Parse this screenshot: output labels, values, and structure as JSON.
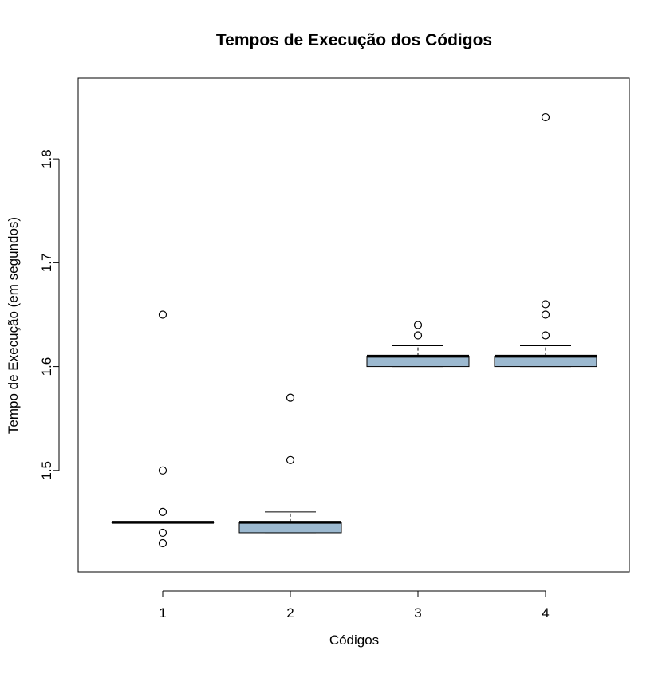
{
  "chart_data": {
    "type": "boxplot",
    "title": "Tempos de Execução dos Códigos",
    "xlabel": "Códigos",
    "ylabel": "Tempo de Execução (em segundos)",
    "ylim": [
      1.42,
      1.86
    ],
    "yticks": [
      "1.5",
      "1.6",
      "1.7",
      "1.8"
    ],
    "categories": [
      "1",
      "2",
      "3",
      "4"
    ],
    "box_color": "#9cb9d0",
    "boxes": [
      {
        "category": "1",
        "whisker_low": 1.45,
        "q1": 1.45,
        "median": 1.45,
        "q3": 1.45,
        "whisker_high": 1.45,
        "outliers": [
          1.65,
          1.5,
          1.46,
          1.44,
          1.43
        ]
      },
      {
        "category": "2",
        "whisker_low": 1.44,
        "q1": 1.44,
        "median": 1.45,
        "q3": 1.45,
        "whisker_high": 1.46,
        "outliers": [
          1.57,
          1.51
        ]
      },
      {
        "category": "3",
        "whisker_low": 1.6,
        "q1": 1.6,
        "median": 1.61,
        "q3": 1.61,
        "whisker_high": 1.62,
        "outliers": [
          1.64,
          1.63
        ]
      },
      {
        "category": "4",
        "whisker_low": 1.6,
        "q1": 1.6,
        "median": 1.61,
        "q3": 1.61,
        "whisker_high": 1.62,
        "outliers": [
          1.84,
          1.66,
          1.65,
          1.63
        ]
      }
    ]
  }
}
